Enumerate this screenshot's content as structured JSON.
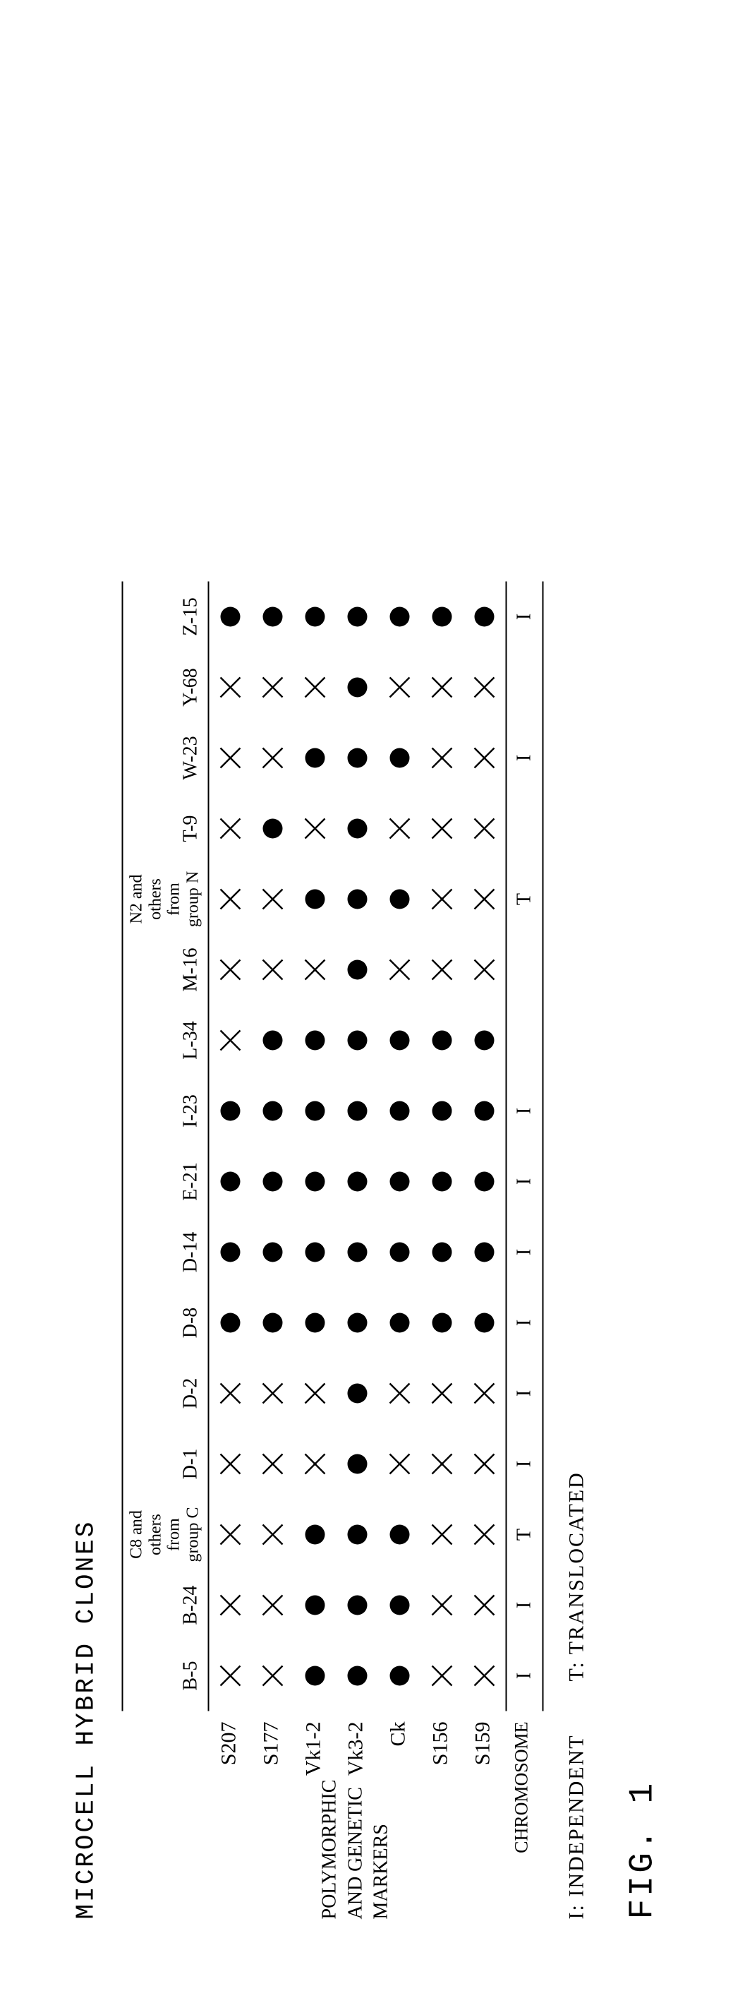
{
  "title": "MICROCELL HYBRID CLONES",
  "figLabel": "FIG. 1",
  "legend": {
    "independent": "I: INDEPENDENT",
    "translocated": "T: TRANSLOCATED"
  },
  "sideLabel": "POLYMORPHIC AND GENETIC MARKERS",
  "chromLabel": "CHROMOSOME",
  "markers": [
    "S207",
    "S177",
    "Vk1-2",
    "Vk3-2",
    "Ck",
    "S156",
    "S159"
  ],
  "columns": [
    {
      "label": "B-5",
      "stacked": null
    },
    {
      "label": "B-24",
      "stacked": null
    },
    {
      "label": "",
      "stacked": "C8 and\nothers\nfrom\ngroup C"
    },
    {
      "label": "D-1",
      "stacked": null
    },
    {
      "label": "D-2",
      "stacked": null
    },
    {
      "label": "D-8",
      "stacked": null
    },
    {
      "label": "D-14",
      "stacked": null
    },
    {
      "label": "E-21",
      "stacked": null
    },
    {
      "label": "I-23",
      "stacked": null
    },
    {
      "label": "L-34",
      "stacked": null
    },
    {
      "label": "M-16",
      "stacked": null
    },
    {
      "label": "",
      "stacked": "N2 and\nothers\nfrom\ngroup N"
    },
    {
      "label": "T-9",
      "stacked": null
    },
    {
      "label": "W-23",
      "stacked": null
    },
    {
      "label": "Y-68",
      "stacked": null
    },
    {
      "label": "Z-15",
      "stacked": null
    }
  ],
  "grid": [
    [
      "x",
      "x",
      "x",
      "x",
      "x",
      "d",
      "d",
      "d",
      "d",
      "x",
      "x",
      "x",
      "x",
      "x",
      "x",
      "d"
    ],
    [
      "x",
      "x",
      "x",
      "x",
      "x",
      "d",
      "d",
      "d",
      "d",
      "d",
      "x",
      "x",
      "d",
      "x",
      "x",
      "d"
    ],
    [
      "d",
      "d",
      "d",
      "x",
      "x",
      "d",
      "d",
      "d",
      "d",
      "d",
      "x",
      "d",
      "x",
      "d",
      "x",
      "d"
    ],
    [
      "d",
      "d",
      "d",
      "d",
      "d",
      "d",
      "d",
      "d",
      "d",
      "d",
      "d",
      "d",
      "d",
      "d",
      "d",
      "d"
    ],
    [
      "d",
      "d",
      "d",
      "x",
      "x",
      "d",
      "d",
      "d",
      "d",
      "d",
      "x",
      "d",
      "x",
      "d",
      "x",
      "d"
    ],
    [
      "x",
      "x",
      "x",
      "x",
      "x",
      "d",
      "d",
      "d",
      "d",
      "d",
      "x",
      "x",
      "x",
      "x",
      "x",
      "d"
    ],
    [
      "x",
      "x",
      "x",
      "x",
      "x",
      "d",
      "d",
      "d",
      "d",
      "d",
      "x",
      "x",
      "x",
      "x",
      "x",
      "d"
    ]
  ],
  "chromosome": [
    "I",
    "I",
    "T",
    "I",
    "I",
    "I",
    "I",
    "I",
    "I",
    "",
    "",
    "T",
    "",
    "I",
    "",
    "I"
  ],
  "style": {
    "dotRadius": 14,
    "dotColor": "#000000",
    "xSize": 28,
    "xStroke": 2.5,
    "xColor": "#000000",
    "cellW": 100,
    "cellH": 60
  }
}
